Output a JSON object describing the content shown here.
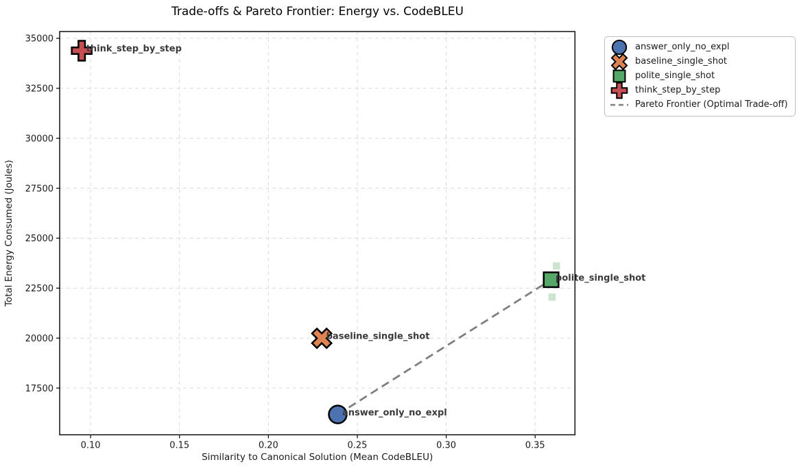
{
  "chart_data": {
    "type": "scatter",
    "title": "Trade-offs & Pareto Frontier: Energy vs. CodeBLEU",
    "xlabel": "Similarity to Canonical Solution (Mean CodeBLEU)",
    "ylabel": "Total Energy Consumed (Joules)",
    "xlim": [
      0.0826,
      0.3724
    ],
    "ylim": [
      15160,
      35340
    ],
    "xticks": [
      0.1,
      0.15,
      0.2,
      0.25,
      0.3,
      0.35
    ],
    "xtick_labels": [
      "0.10",
      "0.15",
      "0.20",
      "0.25",
      "0.30",
      "0.35"
    ],
    "yticks": [
      17500,
      20000,
      22500,
      25000,
      27500,
      30000,
      32500,
      35000
    ],
    "ytick_labels": [
      "17500",
      "20000",
      "22500",
      "25000",
      "27500",
      "30000",
      "32500",
      "35000"
    ],
    "grid": true,
    "legend_position": "outside-upper-right",
    "series": [
      {
        "name": "answer_only_no_expl",
        "marker": "circle",
        "color": "#4C72B0",
        "points": [
          [
            0.239,
            16180
          ]
        ]
      },
      {
        "name": "baseline_single_shot",
        "marker": "X",
        "color": "#DD8452",
        "points": [
          [
            0.23,
            19990
          ]
        ]
      },
      {
        "name": "polite_single_shot",
        "marker": "square",
        "color": "#55A868",
        "points": [
          [
            0.359,
            22920
          ]
        ],
        "raw_points": [
          [
            0.362,
            23610
          ],
          [
            0.3595,
            22050
          ]
        ]
      },
      {
        "name": "think_step_by_step",
        "marker": "plus",
        "color": "#C44E52",
        "points": [
          [
            0.095,
            34380
          ]
        ]
      }
    ],
    "pareto_frontier": {
      "label": "Pareto Frontier (Optimal Trade-off)",
      "color": "#7f7f7f",
      "style": "dashed",
      "points": [
        [
          0.239,
          16180
        ],
        [
          0.359,
          22920
        ]
      ]
    },
    "legend_entries": [
      "answer_only_no_expl",
      "baseline_single_shot",
      "polite_single_shot",
      "think_step_by_step",
      "Pareto Frontier (Optimal Trade-off)"
    ],
    "colors": {
      "grid": "#d9d9d9",
      "annotation_text": "#3a3a3a",
      "marker_edge": "#000000",
      "axis_text": "#1a1a1a",
      "spine": "#000000"
    }
  }
}
